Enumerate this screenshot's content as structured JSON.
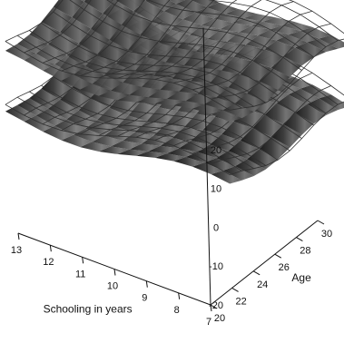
{
  "chart_data": {
    "type": "surface3d",
    "title": "",
    "x_axis": {
      "label": "Schooling in years",
      "ticks": [
        "13",
        "12",
        "11",
        "10",
        "9",
        "8",
        "7"
      ],
      "range": [
        7,
        13
      ]
    },
    "y_axis": {
      "label": "Age",
      "ticks": [
        "20",
        "22",
        "24",
        "26",
        "28",
        "30"
      ],
      "range": [
        20,
        30
      ]
    },
    "z_axis": {
      "label": "",
      "ticks": [
        "-20",
        "-10",
        "0",
        "10",
        "20"
      ],
      "range": [
        -20,
        30
      ]
    },
    "surfaces": [
      {
        "style": "wireframe",
        "position": "upper band",
        "z_center": 28
      },
      {
        "style": "shaded",
        "position": "upper band",
        "z_center": 26
      },
      {
        "style": "wireframe",
        "position": "lower band",
        "z_center": 12
      },
      {
        "style": "shaded",
        "position": "lower band",
        "z_center": 10
      }
    ],
    "grid": false,
    "legend": "none"
  },
  "colors": {
    "surface_light": "#7a7a7a",
    "surface_dark": "#1e1e1e",
    "wire": "#303030",
    "axis": "#111111"
  }
}
